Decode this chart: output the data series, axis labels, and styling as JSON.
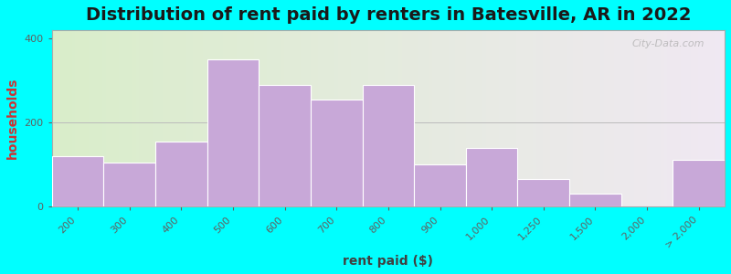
{
  "title": "Distribution of rent paid by renters in Batesville, AR in 2022",
  "xlabel": "rent paid ($)",
  "ylabel": "households",
  "categories": [
    "200",
    "300",
    "400",
    "500",
    "600",
    "700",
    "800",
    "900",
    "1,000",
    "1,250",
    "1,500",
    "2,000",
    "> 2,000"
  ],
  "values": [
    120,
    105,
    155,
    350,
    290,
    255,
    290,
    100,
    140,
    65,
    30,
    0,
    110
  ],
  "bar_color": "#c8a8d8",
  "bar_edge_color": "#ffffff",
  "background_color_left": "#d8ecc8",
  "background_color_right": "#f0f0e8",
  "outer_background": "#00ffff",
  "ylim": [
    0,
    420
  ],
  "yticks": [
    0,
    200,
    400
  ],
  "title_fontsize": 14,
  "axis_label_fontsize": 10,
  "tick_fontsize": 8,
  "watermark": "City-Data.com"
}
